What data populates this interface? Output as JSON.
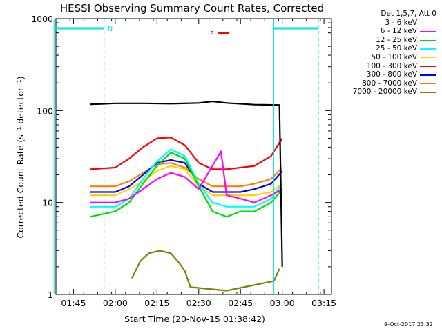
{
  "chart_data": {
    "type": "line",
    "title": "HESSI Observing Summary Count Rates, Corrected",
    "xlabel": "Start Time (20-Nov-15 01:38:42)",
    "ylabel": "Corrected Count Rate (s⁻¹ detector⁻¹)",
    "yscale": "log",
    "ylim": [
      1,
      1000
    ],
    "xlim_minutes_from_start": [
      0,
      99
    ],
    "x_ticks": [
      "01:45",
      "02:00",
      "02:15",
      "02:30",
      "02:45",
      "03:00",
      "03:15"
    ],
    "y_ticks": [
      "1",
      "10",
      "100",
      "1000"
    ],
    "grid": false,
    "legend_position": "right",
    "legend_header": "Det 1,5,7, Att 0",
    "series": [
      {
        "name": "3 - 6 keV",
        "color": "#000000",
        "x": [
          "01:51",
          "01:55",
          "02:00",
          "02:10",
          "02:20",
          "02:30",
          "02:35",
          "02:40",
          "02:50",
          "02:59",
          "03:00"
        ],
        "values": [
          117,
          118,
          120,
          120,
          119,
          121,
          126,
          121,
          116,
          115,
          2
        ]
      },
      {
        "name": "6 - 12 keV",
        "color": "#ff00ff",
        "x": [
          "01:51",
          "02:00",
          "02:05",
          "02:10",
          "02:15",
          "02:20",
          "02:25",
          "02:30",
          "02:38",
          "02:40",
          "02:45",
          "02:50",
          "02:56",
          "03:00"
        ],
        "values": [
          10,
          10,
          11,
          14,
          18,
          21,
          19,
          14,
          36,
          12,
          11,
          10,
          12,
          14
        ]
      },
      {
        "name": "12 - 25 keV",
        "color": "#00e000",
        "x": [
          "01:51",
          "02:00",
          "02:05",
          "02:10",
          "02:15",
          "02:20",
          "02:25",
          "02:30",
          "02:35",
          "02:40",
          "02:45",
          "02:50",
          "02:56",
          "03:00"
        ],
        "values": [
          7,
          8,
          10,
          16,
          25,
          35,
          30,
          15,
          8,
          7,
          8,
          8,
          10,
          14
        ]
      },
      {
        "name": "25 - 50 keV",
        "color": "#00ffff",
        "x": [
          "01:51",
          "02:00",
          "02:05",
          "02:10",
          "02:15",
          "02:20",
          "02:25",
          "02:30",
          "02:35",
          "02:40",
          "02:45",
          "02:50",
          "02:56",
          "03:00"
        ],
        "values": [
          9,
          9,
          11,
          18,
          28,
          38,
          32,
          16,
          10,
          9,
          9,
          9,
          11,
          16
        ]
      },
      {
        "name": "50 - 100 keV",
        "color": "#ffd200",
        "x": [
          "01:51",
          "02:00",
          "02:05",
          "02:10",
          "02:15",
          "02:20",
          "02:25",
          "02:30",
          "02:35",
          "02:40",
          "02:45",
          "02:50",
          "02:56",
          "03:00"
        ],
        "values": [
          12,
          12,
          14,
          17,
          22,
          25,
          23,
          15,
          12,
          12,
          12,
          12,
          13,
          16
        ]
      },
      {
        "name": "100 - 300 keV",
        "color": "#ff0000",
        "x": [
          "01:51",
          "02:00",
          "02:05",
          "02:10",
          "02:15",
          "02:20",
          "02:25",
          "02:30",
          "02:35",
          "02:40",
          "02:45",
          "02:50",
          "02:56",
          "03:00"
        ],
        "values": [
          23,
          24,
          30,
          40,
          50,
          51,
          42,
          27,
          23,
          23,
          24,
          25,
          32,
          50
        ]
      },
      {
        "name": "300 - 800 keV",
        "color": "#0000ff",
        "x": [
          "01:51",
          "02:00",
          "02:05",
          "02:10",
          "02:15",
          "02:20",
          "02:25",
          "02:30",
          "02:35",
          "02:40",
          "02:45",
          "02:50",
          "02:56",
          "03:00"
        ],
        "values": [
          13,
          13,
          15,
          20,
          27,
          29,
          27,
          16,
          13,
          13,
          13,
          14,
          16,
          22
        ]
      },
      {
        "name": "800 - 7000 keV",
        "color": "#ff8000",
        "x": [
          "01:51",
          "02:00",
          "02:05",
          "02:10",
          "02:15",
          "02:20",
          "02:25",
          "02:30",
          "02:35",
          "02:40",
          "02:45",
          "02:50",
          "02:56",
          "03:00"
        ],
        "values": [
          15,
          15,
          17,
          21,
          26,
          27,
          24,
          18,
          15,
          15,
          15,
          16,
          18,
          24
        ]
      },
      {
        "name": "7000 - 20000 keV",
        "color": "#808000",
        "x": [
          "02:06",
          "02:09",
          "02:12",
          "02:16",
          "02:20",
          "02:23",
          "02:25",
          "02:27",
          "02:40",
          "02:57",
          "02:59"
        ],
        "values": [
          1.5,
          2.3,
          2.8,
          3.0,
          2.8,
          2.2,
          1.8,
          1.2,
          1.1,
          1.4,
          1.9
        ]
      }
    ],
    "annotations": [
      {
        "label": "N",
        "color": "#00e6e6",
        "segments": [
          [
            "01:38",
            "01:56"
          ],
          [
            "02:57",
            "03:13"
          ]
        ]
      },
      {
        "label": "F",
        "color": "#ff0000",
        "segments": [
          [
            "02:37",
            "02:41"
          ]
        ]
      }
    ],
    "footer": "9-Oct-2017 23:32"
  }
}
